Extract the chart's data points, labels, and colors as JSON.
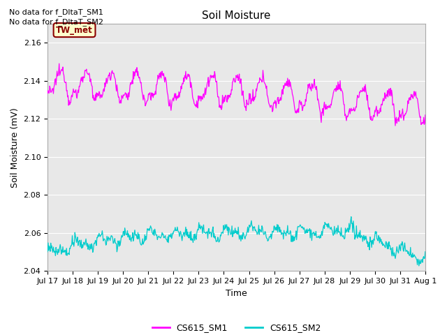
{
  "title": "Soil Moisture",
  "ylabel": "Soil Moisture (mV)",
  "xlabel": "Time",
  "no_data_text1": "No data for f_DltaT_SM1",
  "no_data_text2": "No data for f_DltaT_SM2",
  "tw_met_label": "TW_met",
  "legend_labels": [
    "CS615_SM1",
    "CS615_SM2"
  ],
  "legend_colors": [
    "#ff00ff",
    "#00cccc"
  ],
  "ylim": [
    2.04,
    2.17
  ],
  "yticks": [
    2.04,
    2.06,
    2.08,
    2.1,
    2.12,
    2.14,
    2.16
  ],
  "xtick_labels": [
    "Jul 17",
    "Jul 18",
    "Jul 19",
    "Jul 20",
    "Jul 21",
    "Jul 22",
    "Jul 23",
    "Jul 24",
    "Jul 25",
    "Jul 26",
    "Jul 27",
    "Jul 28",
    "Jul 29",
    "Jul 30",
    "Jul 31",
    "Aug 1"
  ],
  "bg_color": "#e8e8e8",
  "sm1_color": "#ff00ff",
  "sm2_color": "#00cccc",
  "title_fontsize": 11,
  "axis_fontsize": 9,
  "tick_fontsize": 8
}
